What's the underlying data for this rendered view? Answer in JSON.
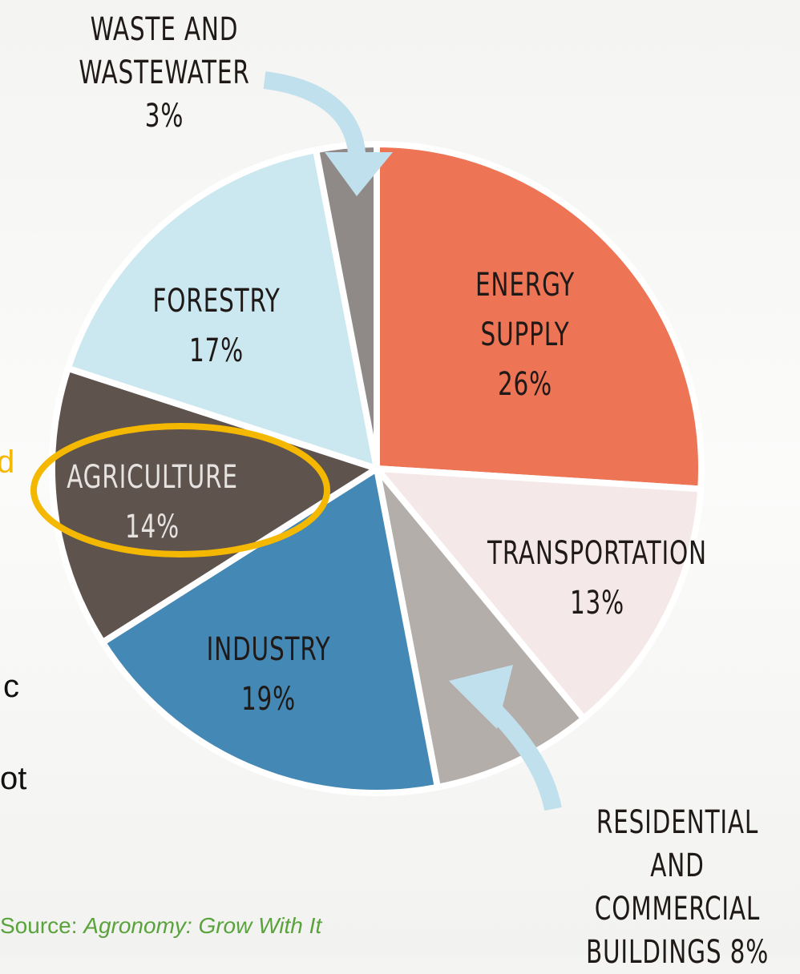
{
  "chart_data": {
    "type": "pie",
    "categories": [
      "ENERGY SUPPLY",
      "TRANSPORTATION",
      "RESIDENTIAL AND COMMERCIAL BUILDINGS",
      "INDUSTRY",
      "AGRICULTURE",
      "FORESTRY",
      "WASTE AND WASTEWATER"
    ],
    "values": [
      26,
      13,
      8,
      19,
      14,
      17,
      3
    ],
    "value_labels": [
      "26%",
      "13%",
      "8%",
      "19%",
      "14%",
      "17%",
      "3%"
    ],
    "colors": [
      "#ee7456",
      "#f4e8e8",
      "#b4aeab",
      "#4488b5",
      "#5f534e",
      "#cbe7f0",
      "#8f8a88"
    ]
  },
  "fragments": [
    "d",
    "c",
    "ot"
  ],
  "source": {
    "prefix": "Source:",
    "title": "Agronomy: Grow With It"
  }
}
